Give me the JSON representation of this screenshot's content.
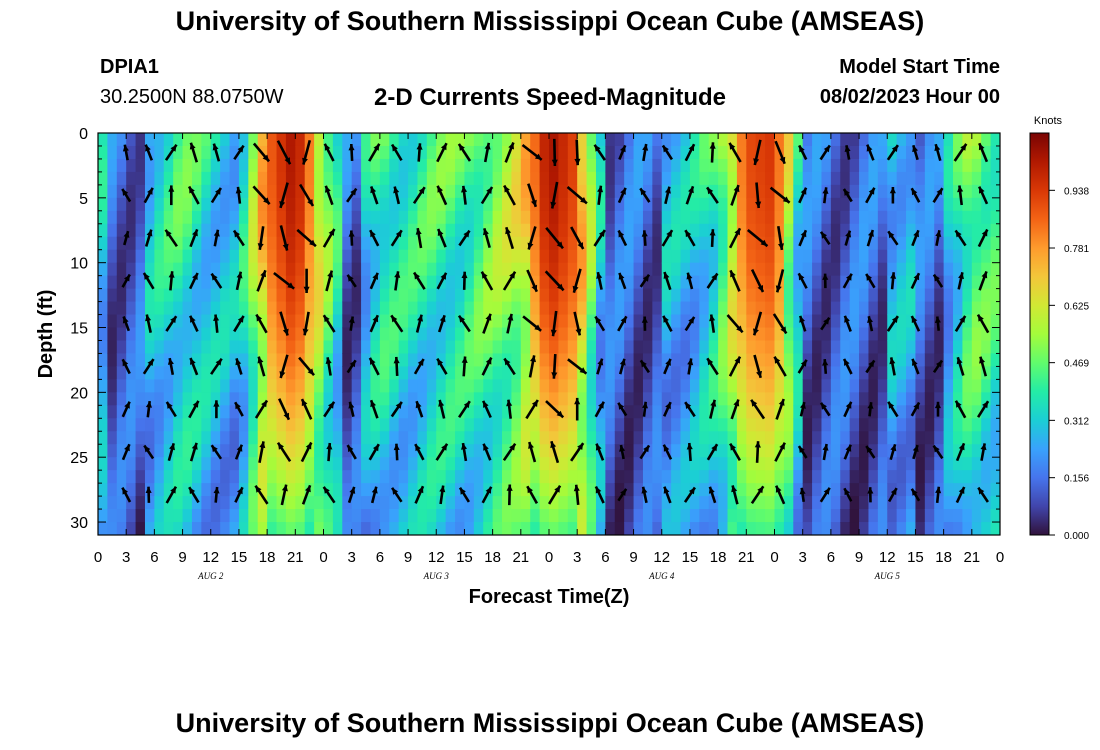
{
  "header": {
    "title": "University of Southern Mississippi Ocean Cube (AMSEAS)",
    "station_id": "DPIA1",
    "station_coords": "30.2500N  88.0750W",
    "subtitle": "2-D Currents Speed-Magnitude",
    "model_start_label": "Model Start Time",
    "model_start_value": "08/02/2023 Hour 00"
  },
  "footer": {
    "title": "University of Southern Mississippi Ocean Cube (AMSEAS)"
  },
  "colors": {
    "colormap": [
      "#30123b",
      "#4145ab",
      "#4675ed",
      "#39a2fc",
      "#1bcfd4",
      "#24eca6",
      "#61fc6c",
      "#a4fc3b",
      "#d1e834",
      "#f3c63a",
      "#fe9b2d",
      "#f36315",
      "#d93806",
      "#b11901",
      "#7a0403"
    ],
    "arrow": "#000000"
  },
  "chart_data": {
    "type": "heatmap",
    "title": "2-D Currents Speed-Magnitude",
    "xlabel": "Forecast Time(Z)",
    "ylabel": "Depth (ft)",
    "x_ticks": [
      "0",
      "3",
      "6",
      "9",
      "12",
      "15",
      "18",
      "21",
      "0",
      "3",
      "6",
      "9",
      "12",
      "15",
      "18",
      "21",
      "0",
      "3",
      "6",
      "9",
      "12",
      "15",
      "18",
      "21",
      "0",
      "3",
      "6",
      "9",
      "12",
      "15",
      "18",
      "21",
      "0"
    ],
    "x_range_hours": [
      0,
      96
    ],
    "day_labels": [
      {
        "label": "AUG 2",
        "hour": 12
      },
      {
        "label": "AUG 3",
        "hour": 36
      },
      {
        "label": "AUG 4",
        "hour": 60
      },
      {
        "label": "AUG 5",
        "hour": 84
      }
    ],
    "y_ticks": [
      0,
      5,
      10,
      15,
      20,
      25,
      30
    ],
    "y_range_ft": [
      0,
      31
    ],
    "y_inverted": true,
    "colorbar": {
      "units": "Knots",
      "ticks": [
        "0.938",
        "0.781",
        "0.625",
        "0.469",
        "0.312",
        "0.156",
        "0.000"
      ],
      "range": [
        0,
        1.094
      ]
    },
    "approx_surface_speed_knots_by_hour": {
      "hours": [
        0,
        3,
        6,
        9,
        12,
        15,
        18,
        21,
        24,
        27,
        30,
        33,
        36,
        39,
        42,
        45,
        48,
        51,
        54,
        57,
        60,
        63,
        66,
        69,
        72,
        75,
        78,
        81,
        84,
        87,
        90,
        93,
        96
      ],
      "values": [
        0.35,
        0.2,
        0.35,
        0.45,
        0.35,
        0.3,
        0.85,
        1.05,
        0.6,
        0.2,
        0.45,
        0.4,
        0.45,
        0.45,
        0.55,
        0.65,
        1.05,
        0.9,
        0.2,
        0.25,
        0.3,
        0.3,
        0.45,
        0.9,
        0.95,
        0.25,
        0.2,
        0.25,
        0.3,
        0.3,
        0.25,
        0.55,
        0.45
      ]
    }
  }
}
